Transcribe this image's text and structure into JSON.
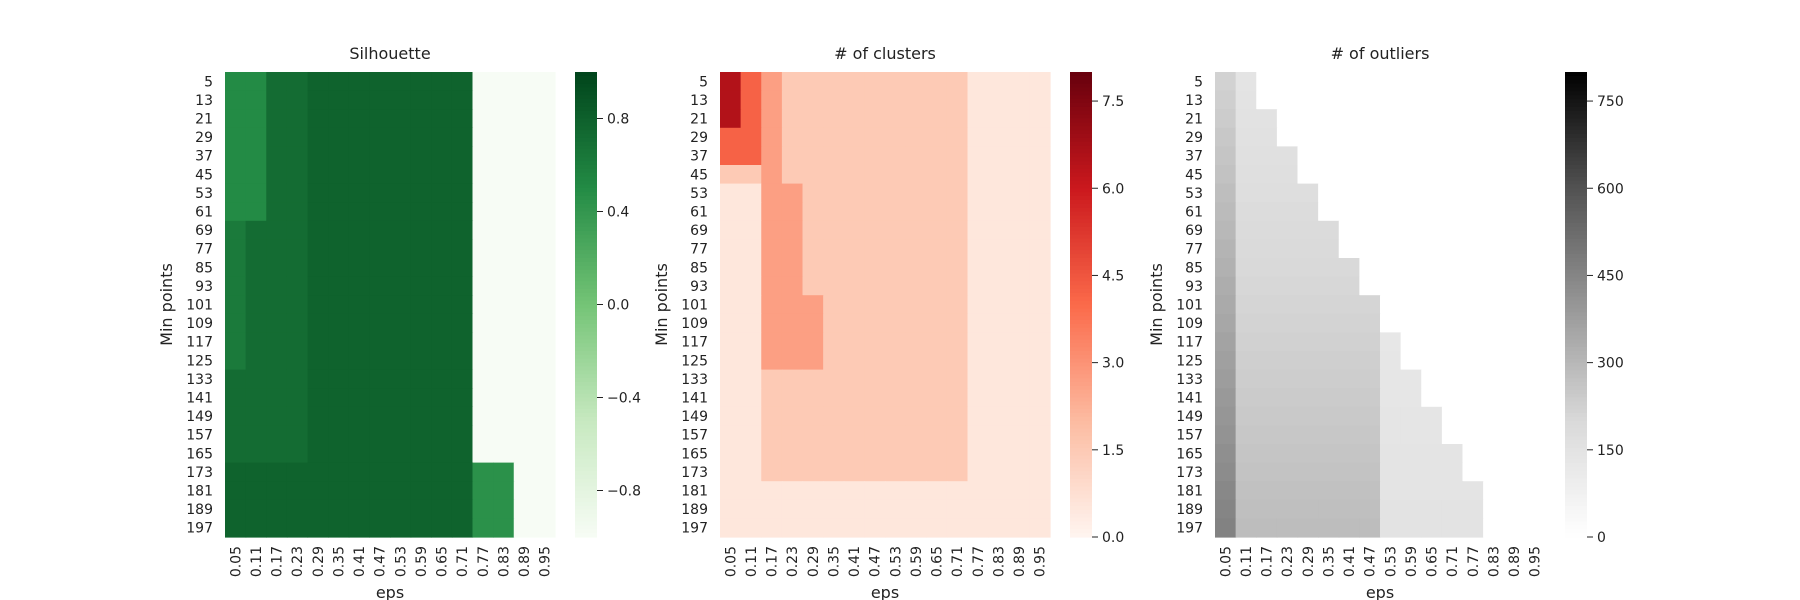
{
  "chart_data": [
    {
      "type": "heatmap",
      "title": "Silhouette",
      "xlabel": "eps",
      "ylabel": "Min points",
      "x_ticks": [
        "0.05",
        "0.11",
        "0.17",
        "0.23",
        "0.29",
        "0.35",
        "0.41",
        "0.47",
        "0.53",
        "0.59",
        "0.65",
        "0.71",
        "0.77",
        "0.83",
        "0.89",
        "0.95"
      ],
      "y_ticks": [
        "5",
        "13",
        "21",
        "29",
        "37",
        "45",
        "53",
        "61",
        "69",
        "77",
        "85",
        "93",
        "101",
        "109",
        "117",
        "125",
        "133",
        "141",
        "149",
        "157",
        "165",
        "173",
        "181",
        "189",
        "197"
      ],
      "cmap": "Greens",
      "colors": [
        "#f7fcf5",
        "#c7e9c0",
        "#74c476",
        "#238b45",
        "#00441b"
      ],
      "vmin": -1,
      "vmax": 1,
      "colorbar_ticks": [
        "0.8",
        "0.4",
        "0.0",
        "−0.4",
        "−0.8"
      ],
      "colorbar_values": [
        0.8,
        0.4,
        0.0,
        -0.4,
        -0.8
      ]
    },
    {
      "type": "heatmap",
      "title": "# of clusters",
      "xlabel": "eps",
      "ylabel": "Min points",
      "x_ticks": [
        "0.05",
        "0.11",
        "0.17",
        "0.23",
        "0.29",
        "0.35",
        "0.41",
        "0.47",
        "0.53",
        "0.59",
        "0.65",
        "0.71",
        "0.77",
        "0.83",
        "0.89",
        "0.95"
      ],
      "y_ticks": [
        "5",
        "13",
        "21",
        "29",
        "37",
        "45",
        "53",
        "61",
        "69",
        "77",
        "85",
        "93",
        "101",
        "109",
        "117",
        "125",
        "133",
        "141",
        "149",
        "157",
        "165",
        "173",
        "181",
        "189",
        "197"
      ],
      "cmap": "Reds",
      "colors": [
        "#fff5f0",
        "#fcbba1",
        "#fb6a4a",
        "#cb181d",
        "#67000d"
      ],
      "vmin": 0,
      "vmax": 8,
      "colorbar_ticks": [
        "7.5",
        "6.0",
        "4.5",
        "3.0",
        "1.5",
        "0.0"
      ],
      "colorbar_values": [
        7.5,
        6.0,
        4.5,
        3.0,
        1.5,
        0.0
      ]
    },
    {
      "type": "heatmap",
      "title": "# of outliers",
      "xlabel": "eps",
      "ylabel": "Min points",
      "x_ticks": [
        "0.05",
        "0.11",
        "0.17",
        "0.23",
        "0.29",
        "0.35",
        "0.41",
        "0.47",
        "0.53",
        "0.59",
        "0.65",
        "0.71",
        "0.77",
        "0.83",
        "0.89",
        "0.95"
      ],
      "y_ticks": [
        "5",
        "13",
        "21",
        "29",
        "37",
        "45",
        "53",
        "61",
        "69",
        "77",
        "85",
        "93",
        "101",
        "109",
        "117",
        "125",
        "133",
        "141",
        "149",
        "157",
        "165",
        "173",
        "181",
        "189",
        "197"
      ],
      "cmap": "Greys",
      "colors": [
        "#ffffff",
        "#d9d9d9",
        "#969696",
        "#525252",
        "#000000"
      ],
      "vmin": 0,
      "vmax": 800,
      "colorbar_ticks": [
        "750",
        "600",
        "450",
        "300",
        "150",
        "0"
      ],
      "colorbar_values": [
        750,
        600,
        450,
        300,
        150,
        0
      ]
    }
  ]
}
